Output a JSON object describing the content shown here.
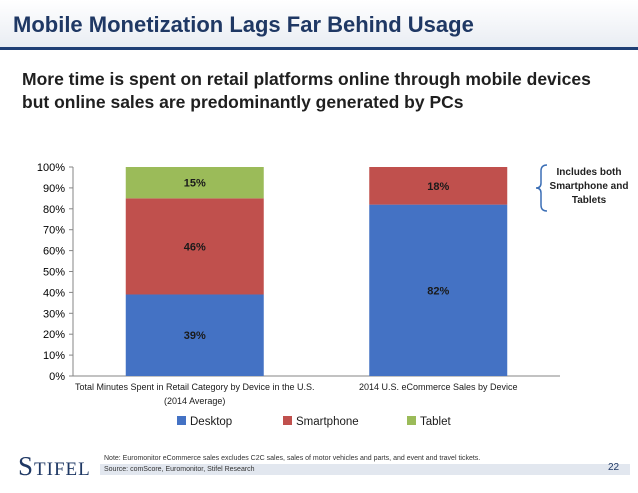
{
  "header": {
    "title": "Mobile Monetization Lags Far Behind Usage"
  },
  "subtitle": "More time is spent on retail platforms online through mobile devices but online sales are predominantly generated by PCs",
  "callout": "Includes both Smartphone and Tablets",
  "footer": {
    "note": "Note: Euromonitor eCommerce sales excludes C2C sales, sales of motor vehicles and parts, and event and travel tickets.",
    "source": "Source: comScore, Euromonitor, Stifel Research",
    "page_number": "22",
    "logo": "Stifel"
  },
  "chart_data": {
    "type": "bar",
    "stacked": true,
    "categories": [
      "Total Minutes Spent in Retail Category by Device in the U.S. (2014 Average)",
      "2014 U.S. eCommerce Sales by Device"
    ],
    "category_lines": [
      [
        "Total Minutes Spent in Retail Category by Device in the U.S.",
        "(2014 Average)"
      ],
      [
        "2014 U.S. eCommerce Sales by Device"
      ]
    ],
    "series": [
      {
        "name": "Desktop",
        "values": [
          39,
          82
        ],
        "color": "#4472c4"
      },
      {
        "name": "Smartphone",
        "values": [
          46,
          18
        ],
        "color": "#c0504d"
      },
      {
        "name": "Tablet",
        "values": [
          15,
          0
        ],
        "color": "#9bbb59"
      }
    ],
    "data_labels": [
      [
        "39%",
        "46%",
        "15%"
      ],
      [
        "82%",
        "18%",
        ""
      ]
    ],
    "yticks": [
      "0%",
      "10%",
      "20%",
      "30%",
      "40%",
      "50%",
      "60%",
      "70%",
      "80%",
      "90%",
      "100%"
    ],
    "ylim": [
      0,
      100
    ],
    "legend_position": "bottom",
    "grid": false
  }
}
